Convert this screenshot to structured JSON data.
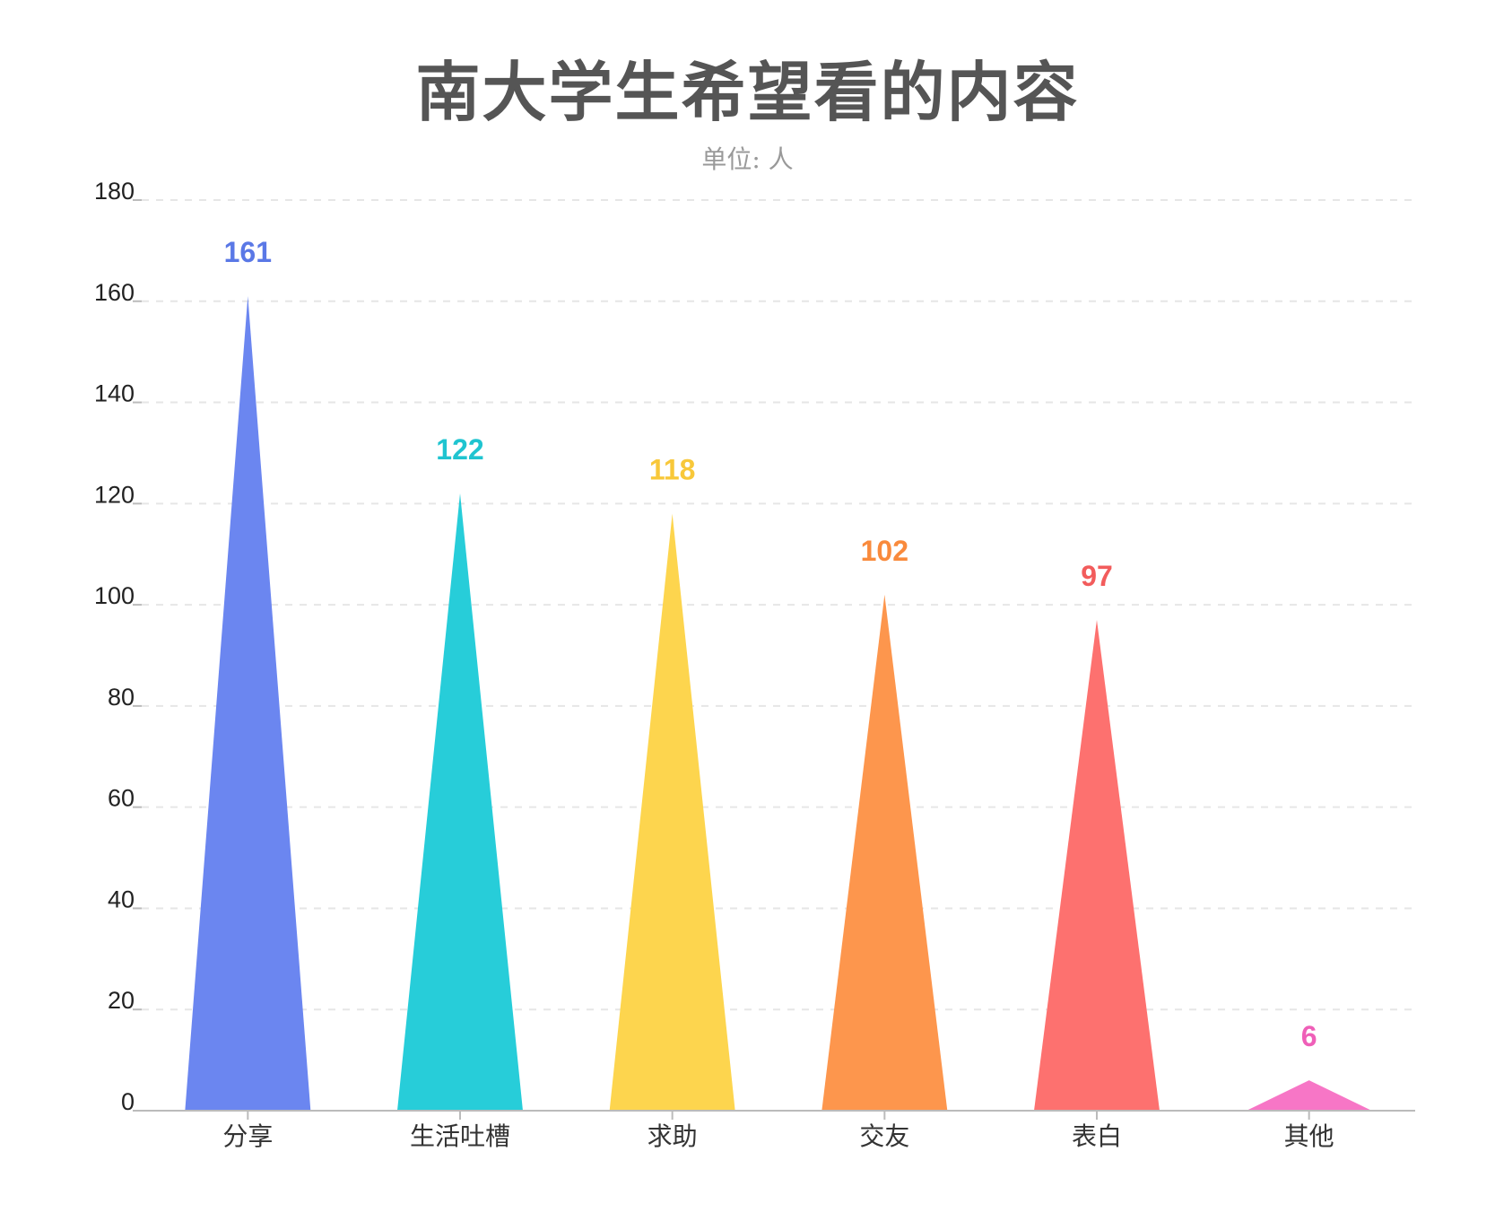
{
  "chart_data": {
    "type": "bar",
    "bar_shape": "triangle",
    "title": "南大学生希望看的内容",
    "subtitle": "单位: 人",
    "categories": [
      "分享",
      "生活吐槽",
      "求助",
      "交友",
      "表白",
      "其他"
    ],
    "values": [
      161,
      122,
      118,
      102,
      97,
      6
    ],
    "colors": [
      "#6b86f0",
      "#27cdd9",
      "#fdd54e",
      "#fd964d",
      "#fd716f",
      "#f776c6"
    ],
    "label_colors": [
      "#5a78e6",
      "#1fc4d0",
      "#f8c83a",
      "#f98a3c",
      "#f25c5c",
      "#ef5fb8"
    ],
    "ylim": [
      0,
      180
    ],
    "yticks": [
      0,
      20,
      40,
      60,
      80,
      100,
      120,
      140,
      160,
      180
    ],
    "grid": true,
    "legend": "none"
  }
}
